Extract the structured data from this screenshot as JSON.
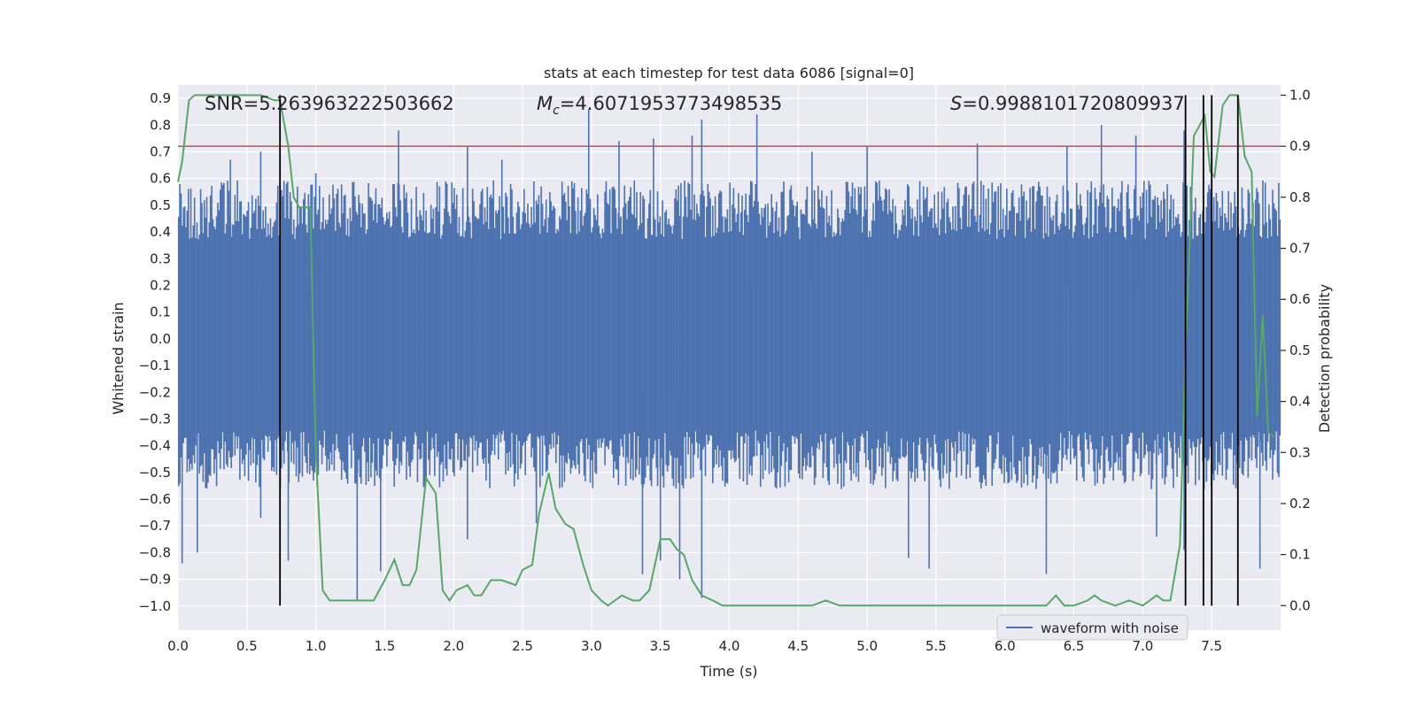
{
  "chart_data": {
    "type": "line",
    "title": "stats at each timestep for test data 6086 [signal=0]",
    "xlabel": "Time (s)",
    "ylabel": "Whitened strain",
    "y2label": "Detection probability",
    "xlim": [
      0.0,
      8.0
    ],
    "ylim": [
      -1.09,
      0.95
    ],
    "y2lim": [
      -0.048,
      1.02
    ],
    "xticks": [
      "0.0",
      "0.5",
      "1.0",
      "1.5",
      "2.0",
      "2.5",
      "3.0",
      "3.5",
      "4.0",
      "4.5",
      "5.0",
      "5.5",
      "6.0",
      "6.5",
      "7.0",
      "7.5"
    ],
    "yticks": [
      "0.9",
      "0.8",
      "0.7",
      "0.6",
      "0.5",
      "0.4",
      "0.3",
      "0.2",
      "0.1",
      "0.0",
      "-0.1",
      "-0.2",
      "-0.3",
      "-0.4",
      "-0.5",
      "-0.6",
      "-0.7",
      "-0.8",
      "-0.9",
      "-1.0"
    ],
    "y2ticks": [
      "1.0",
      "0.9",
      "0.8",
      "0.7",
      "0.6",
      "0.5",
      "0.4",
      "0.3",
      "0.2",
      "0.1",
      "0.0"
    ],
    "annotations": {
      "snr": "SNR=5.263963222503662",
      "mc_symbol": "M",
      "mc_sub": "c",
      "mc_value": "=4.6071953773498535",
      "s_symbol": "S",
      "s_value": "=0.9988101720809937"
    },
    "legend": {
      "label": "waveform with noise",
      "location": "lower-right"
    },
    "threshold": {
      "value": 0.9,
      "axis": "right",
      "color": "#c44e52"
    },
    "vlines": [
      0.74,
      7.31,
      7.44,
      7.5,
      7.69
    ],
    "vline_range": [
      0.0,
      1.0
    ],
    "waveform": {
      "name": "waveform with noise",
      "color": "#4c72b0",
      "band": [
        -0.42,
        0.45
      ],
      "positive_spikes": [
        [
          0.38,
          0.67
        ],
        [
          0.6,
          0.7
        ],
        [
          1.0,
          0.62
        ],
        [
          1.6,
          0.78
        ],
        [
          2.1,
          0.72
        ],
        [
          2.35,
          0.67
        ],
        [
          2.98,
          0.86
        ],
        [
          3.2,
          0.74
        ],
        [
          3.45,
          0.75
        ],
        [
          3.73,
          0.76
        ],
        [
          3.8,
          0.82
        ],
        [
          4.2,
          0.84
        ],
        [
          4.6,
          0.7
        ],
        [
          5.0,
          0.72
        ],
        [
          5.8,
          0.73
        ],
        [
          6.45,
          0.72
        ],
        [
          6.7,
          0.8
        ],
        [
          6.95,
          0.76
        ],
        [
          7.3,
          0.78
        ]
      ],
      "negative_spikes": [
        [
          0.03,
          -0.84
        ],
        [
          0.14,
          -0.8
        ],
        [
          0.6,
          -0.67
        ],
        [
          0.8,
          -0.83
        ],
        [
          1.3,
          -0.98
        ],
        [
          1.47,
          -0.87
        ],
        [
          2.1,
          -0.75
        ],
        [
          2.6,
          -0.69
        ],
        [
          3.37,
          -0.88
        ],
        [
          3.5,
          -0.83
        ],
        [
          3.64,
          -0.9
        ],
        [
          3.8,
          -0.97
        ],
        [
          5.3,
          -0.82
        ],
        [
          5.45,
          -0.86
        ],
        [
          6.3,
          -0.88
        ],
        [
          7.1,
          -0.74
        ],
        [
          7.3,
          -0.79
        ],
        [
          7.85,
          -0.86
        ]
      ]
    },
    "series": [
      {
        "name": "detection probability",
        "axis": "right",
        "color": "#55a868",
        "x": [
          0.0,
          0.03,
          0.08,
          0.12,
          0.2,
          0.3,
          0.4,
          0.5,
          0.6,
          0.7,
          0.74,
          0.8,
          0.84,
          0.88,
          0.92,
          0.96,
          1.0,
          1.05,
          1.1,
          1.15,
          1.2,
          1.27,
          1.35,
          1.42,
          1.5,
          1.57,
          1.63,
          1.68,
          1.73,
          1.8,
          1.87,
          1.92,
          1.97,
          2.02,
          2.1,
          2.15,
          2.2,
          2.27,
          2.35,
          2.45,
          2.5,
          2.57,
          2.62,
          2.69,
          2.74,
          2.81,
          2.87,
          2.94,
          3.0,
          3.07,
          3.12,
          3.17,
          3.22,
          3.3,
          3.35,
          3.42,
          3.5,
          3.57,
          3.62,
          3.67,
          3.73,
          3.8,
          3.88,
          3.95,
          4.05,
          4.15,
          4.3,
          4.45,
          4.6,
          4.7,
          4.8,
          4.9,
          5.1,
          5.3,
          5.5,
          5.7,
          6.0,
          6.2,
          6.3,
          6.37,
          6.43,
          6.5,
          6.6,
          6.65,
          6.7,
          6.8,
          6.9,
          7.0,
          7.1,
          7.15,
          7.2,
          7.27,
          7.31,
          7.37,
          7.45,
          7.49,
          7.52,
          7.58,
          7.63,
          7.69,
          7.74,
          7.79,
          7.83,
          7.87,
          7.91,
          7.95
        ],
        "y": [
          0.83,
          0.87,
          0.99,
          1.0,
          1.0,
          1.0,
          1.0,
          1.0,
          1.0,
          0.99,
          0.99,
          0.9,
          0.8,
          0.78,
          0.78,
          0.78,
          0.3,
          0.03,
          0.01,
          0.01,
          0.01,
          0.01,
          0.01,
          0.01,
          0.05,
          0.09,
          0.04,
          0.04,
          0.07,
          0.25,
          0.22,
          0.03,
          0.01,
          0.03,
          0.04,
          0.02,
          0.02,
          0.05,
          0.05,
          0.04,
          0.07,
          0.08,
          0.18,
          0.26,
          0.19,
          0.16,
          0.15,
          0.08,
          0.03,
          0.01,
          0.0,
          0.01,
          0.02,
          0.01,
          0.01,
          0.03,
          0.13,
          0.13,
          0.11,
          0.1,
          0.05,
          0.02,
          0.01,
          0.0,
          0.0,
          0.0,
          0.0,
          0.0,
          0.0,
          0.01,
          0.0,
          0.0,
          0.0,
          0.0,
          0.0,
          0.0,
          0.0,
          0.0,
          0.0,
          0.02,
          0.0,
          0.0,
          0.01,
          0.02,
          0.01,
          0.0,
          0.01,
          0.0,
          0.02,
          0.01,
          0.01,
          0.12,
          0.5,
          0.92,
          0.96,
          0.85,
          0.84,
          0.98,
          1.0,
          1.0,
          0.88,
          0.85,
          0.37,
          0.57,
          0.34,
          0.33
        ]
      }
    ]
  }
}
